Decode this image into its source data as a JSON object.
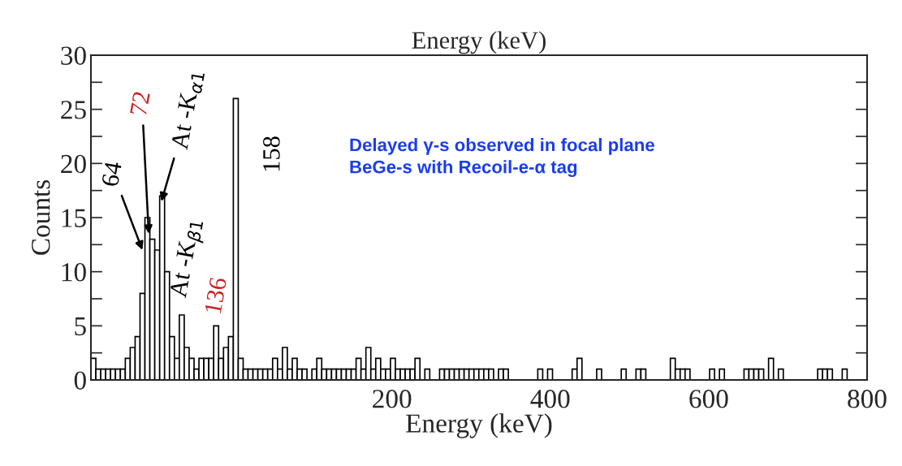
{
  "chart_data": {
    "type": "histogram",
    "title": "Energy (keV)",
    "xlabel": "Energy (keV)",
    "ylabel": "Counts",
    "bins": [
      -180,
      -173.8,
      -167.6,
      -161.4,
      -155.2,
      -149,
      -142.8,
      -136.6,
      -130.4,
      -124.2,
      -118,
      -111.8,
      -105.6,
      -99.4,
      -93.2,
      -87,
      -80.8,
      -74.6,
      -68.4,
      -62.2,
      -56,
      -49.8,
      -43.6,
      -37.4,
      -31.2,
      -25,
      -18.8,
      -12.6,
      -6.4,
      -0.2,
      6,
      12.2,
      18.4,
      24.6,
      30.8,
      37,
      43.2,
      49.4,
      55.6,
      61.8,
      68,
      74.2,
      80.4,
      86.6,
      92.8,
      99,
      105.2,
      111.4,
      117.6,
      123.8,
      130,
      136.2,
      142.4,
      148.6,
      154.8,
      161,
      167.2,
      173.4,
      179.6,
      185.8,
      192,
      198.2,
      204.4,
      210.6,
      216.8,
      223,
      229.2,
      235.4,
      241.6,
      247.8,
      254,
      260.2,
      266.4,
      272.6,
      278.8,
      285,
      291.2,
      297.4,
      303.6,
      309.8,
      316,
      322.2,
      328.4,
      334.6,
      340.8,
      347,
      353.2,
      359.4,
      365.6,
      371.8,
      378,
      384.2,
      390.4,
      396.6,
      402.8,
      409,
      415.2,
      421.4,
      427.6,
      433.8,
      440,
      446.2,
      452.4,
      458.6,
      464.8,
      471,
      477.2,
      483.4,
      489.6,
      495.8,
      502,
      508.2,
      514.4,
      520.6,
      526.8,
      533,
      539.2,
      545.4,
      551.6,
      557.8,
      564,
      570.2,
      576.4,
      582.6,
      588.8,
      595,
      601.2,
      607.4,
      613.6,
      619.8,
      626,
      632.2,
      638.4,
      644.6,
      650.8,
      657,
      663.2,
      669.4,
      675.6,
      681.8,
      688,
      694.2,
      700.4,
      706.6,
      712.8,
      719,
      725.2,
      731.4,
      737.6,
      743.8,
      750,
      756.2,
      762.4,
      768.6,
      774.8,
      781,
      787.2,
      793.4,
      799.6
    ],
    "values": [
      2,
      1,
      1,
      1,
      1,
      1,
      1,
      2,
      3,
      4,
      8,
      15,
      13,
      12,
      17,
      10,
      4,
      2,
      6,
      3,
      2,
      1,
      2,
      2,
      2,
      5,
      2,
      3,
      4,
      26,
      2,
      1,
      1,
      1,
      1,
      1,
      1,
      2,
      1,
      3,
      1,
      2,
      1,
      1,
      0,
      1,
      2,
      1,
      1,
      1,
      1,
      1,
      1,
      1,
      2,
      1,
      3,
      1,
      2,
      1,
      1,
      2,
      1,
      1,
      1,
      1,
      2,
      0,
      1,
      0,
      0,
      1,
      1,
      1,
      1,
      1,
      1,
      1,
      1,
      1,
      1,
      1,
      0,
      1,
      1,
      0,
      0,
      0,
      0,
      0,
      0,
      1,
      0,
      1,
      0,
      0,
      0,
      0,
      1,
      2,
      0,
      0,
      0,
      1,
      0,
      0,
      0,
      0,
      1,
      0,
      0,
      1,
      1,
      0,
      0,
      0,
      0,
      0,
      2,
      1,
      1,
      1,
      0,
      0,
      0,
      0,
      1,
      0,
      1,
      0,
      0,
      0,
      0,
      1,
      1,
      1,
      1,
      0,
      2,
      0,
      1,
      0,
      0,
      0,
      0,
      0,
      0,
      0,
      1,
      1,
      1,
      0,
      0,
      1,
      0,
      0,
      0,
      0
    ],
    "color": "#000000",
    "xlim": [
      -180,
      800
    ],
    "xticks": [
      200,
      400,
      600,
      800
    ],
    "ylim": [
      0,
      30
    ],
    "yticks": [
      0,
      {
        "value": 2.5,
        "label": null
      },
      5,
      {
        "value": 7.5,
        "label": null
      },
      10,
      {
        "value": 12.5,
        "label": null
      },
      15,
      {
        "value": 17.5,
        "label": null
      },
      20,
      {
        "value": 22.5,
        "label": null
      },
      25,
      {
        "value": 27.5,
        "label": null
      },
      30
    ],
    "grid": false,
    "annotations": [
      {
        "text": "64",
        "x": -115,
        "y": 12
      },
      {
        "text": "72",
        "x": -107,
        "y": 13.5
      },
      {
        "text": "At -K$_{α1}$",
        "x": -91,
        "y": 16.5
      },
      "At -K$_{β1}$",
      "136",
      "158",
      "Delayed γ-s observed in focal plane\nBeGe-s with Recoil-e-α tag"
    ]
  }
}
